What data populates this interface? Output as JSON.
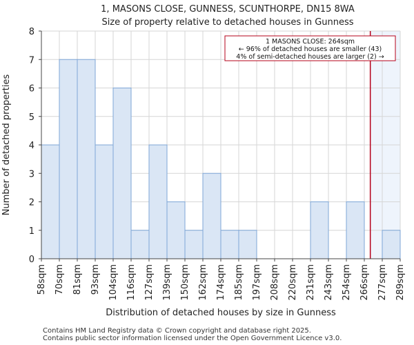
{
  "chart_data": {
    "type": "histogram",
    "title": "1, MASONS CLOSE, GUNNESS, SCUNTHORPE, DN15 8WA",
    "subtitle": "Size of property relative to detached houses in Gunness",
    "xlabel": "Distribution of detached houses by size in Gunness",
    "ylabel": "Number of detached properties",
    "bin_labels": [
      "58sqm",
      "70sqm",
      "81sqm",
      "93sqm",
      "104sqm",
      "116sqm",
      "127sqm",
      "139sqm",
      "150sqm",
      "162sqm",
      "174sqm",
      "185sqm",
      "197sqm",
      "208sqm",
      "220sqm",
      "231sqm",
      "243sqm",
      "254sqm",
      "266sqm",
      "277sqm",
      "289sqm"
    ],
    "values": [
      4,
      7,
      7,
      4,
      6,
      1,
      4,
      2,
      1,
      3,
      1,
      1,
      0,
      0,
      0,
      2,
      0,
      2,
      0,
      1
    ],
    "ylim": [
      0,
      8
    ],
    "yticks": [
      0,
      1,
      2,
      3,
      4,
      5,
      6,
      7,
      8
    ],
    "grid": true,
    "bar_color": "#dae6f5",
    "bar_edge_color": "#7ea6d6",
    "marker": {
      "value_sqm": 264,
      "color": "#b5001a",
      "annotation_lines": [
        "1 MASONS CLOSE: 264sqm",
        "← 96% of detached houses are smaller (43)",
        "4% of semi-detached houses are larger (2) →"
      ]
    },
    "highlight_region_color": "#eef4fc"
  },
  "footer": {
    "line1": "Contains HM Land Registry data © Crown copyright and database right 2025.",
    "line2": "Contains public sector information licensed under the Open Government Licence v3.0."
  }
}
